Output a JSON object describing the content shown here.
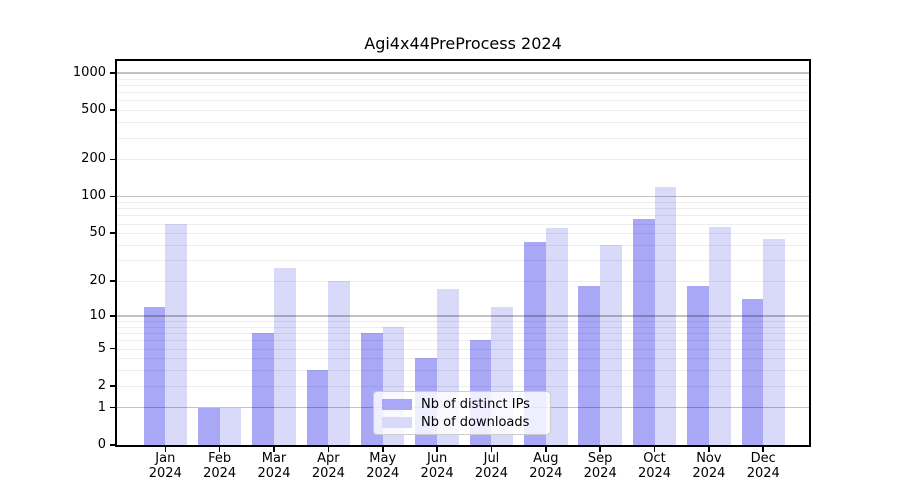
{
  "title": "Agi4x44PreProcess 2024",
  "chart_data": {
    "type": "bar",
    "title": "Agi4x44PreProcess 2024",
    "categories": [
      "Jan 2024",
      "Feb 2024",
      "Mar 2024",
      "Apr 2024",
      "May 2024",
      "Jun 2024",
      "Jul 2024",
      "Aug 2024",
      "Sep 2024",
      "Oct 2024",
      "Nov 2024",
      "Dec 2024"
    ],
    "series": [
      {
        "name": "Nb of distinct IPs",
        "color": "#a8a8f7",
        "values": [
          12,
          1,
          7,
          3,
          7,
          4,
          6,
          42,
          18,
          65,
          18,
          14
        ]
      },
      {
        "name": "Nb of downloads",
        "color": "#d9d9fa",
        "values": [
          60,
          1,
          26,
          20,
          8,
          17,
          12,
          55,
          40,
          120,
          56,
          45
        ]
      }
    ],
    "yscale": "log10(1+v)",
    "yticks": [
      0,
      1,
      2,
      5,
      10,
      20,
      50,
      100,
      200,
      500,
      1000
    ],
    "ytick_labels": [
      "0",
      "1",
      "2",
      "5",
      "10",
      "20",
      "50",
      "100",
      "200",
      "500",
      "1000"
    ],
    "ylim": [
      0,
      1200
    ],
    "xlabel": "",
    "ylabel": "",
    "grid": true,
    "legend_position": "lower center"
  }
}
